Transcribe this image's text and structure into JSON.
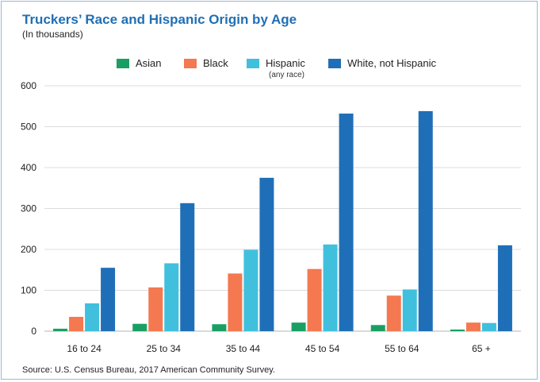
{
  "chart_data": {
    "type": "bar",
    "title": "Truckers’ Race and Hispanic Origin by Age",
    "subtitle": "(In thousands)",
    "xlabel": "",
    "ylabel": "",
    "ylim": [
      0,
      600
    ],
    "yticks": [
      "0",
      "100",
      "200",
      "300",
      "400",
      "500",
      "600"
    ],
    "grid": true,
    "legend_position": "top",
    "categories": [
      "16 to 24",
      "25 to 34",
      "35 to 44",
      "45 to 54",
      "55 to 64",
      "65 +"
    ],
    "series": [
      {
        "name": "Asian",
        "color": "#1a9f63",
        "values": [
          6,
          18,
          17,
          21,
          15,
          4
        ]
      },
      {
        "name": "Black",
        "color": "#f47850",
        "values": [
          35,
          107,
          141,
          152,
          87,
          21
        ]
      },
      {
        "name": "Hispanic",
        "note": "(any race)",
        "color": "#40c0dd",
        "values": [
          68,
          166,
          199,
          212,
          102,
          20
        ]
      },
      {
        "name": "White, not Hispanic",
        "color": "#1f6fb8",
        "values": [
          155,
          313,
          375,
          532,
          538,
          210
        ]
      }
    ],
    "source": "Source: U.S. Census Bureau, 2017 American Community Survey."
  }
}
